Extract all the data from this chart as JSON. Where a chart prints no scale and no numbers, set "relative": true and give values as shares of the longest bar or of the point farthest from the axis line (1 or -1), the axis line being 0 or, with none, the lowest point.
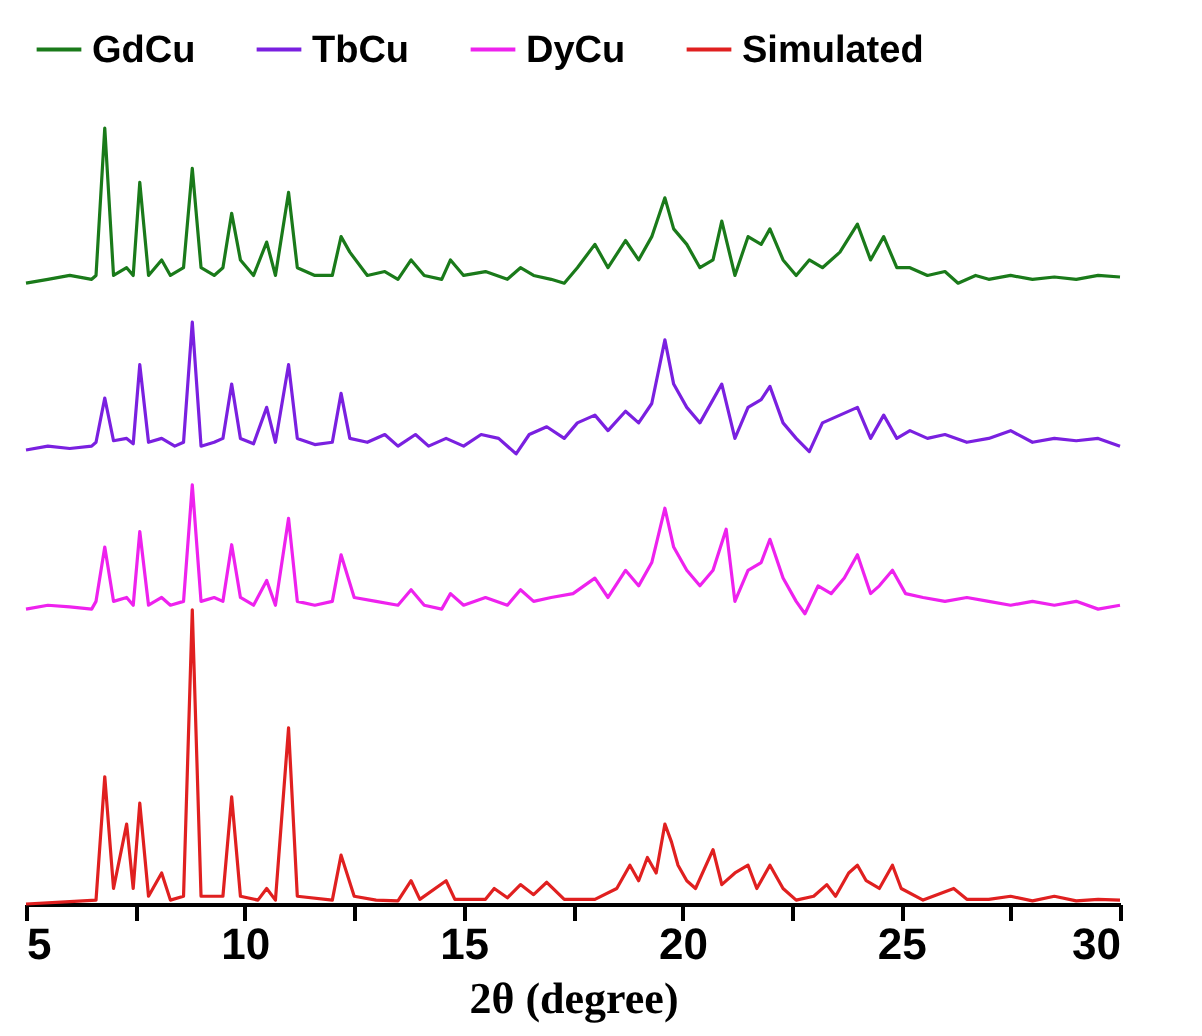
{
  "chart_data": {
    "type": "line",
    "relative": true,
    "xlabel": "2θ (degree)",
    "xlim": [
      5,
      30
    ],
    "xticks": [
      5,
      {
        "value": 7.5,
        "label": null
      },
      10,
      {
        "value": 12.5,
        "label": null
      },
      15,
      {
        "value": 17.5,
        "label": null
      },
      20,
      {
        "value": 22.5,
        "label": null
      },
      25,
      {
        "value": 27.5,
        "label": null
      },
      30
    ],
    "legend": "top",
    "grid": false,
    "marker": "none",
    "line_style": "solid",
    "series": [
      {
        "name": "GdCu",
        "color": "#1a7a1a",
        "x": [
          5,
          5.5,
          6.0,
          6.5,
          6.6,
          6.8,
          7.0,
          7.3,
          7.45,
          7.6,
          7.8,
          8.1,
          8.3,
          8.6,
          8.8,
          9.0,
          9.3,
          9.5,
          9.7,
          9.9,
          10.2,
          10.5,
          10.7,
          11.0,
          11.2,
          11.6,
          12.0,
          12.2,
          12.4,
          12.8,
          13.2,
          13.5,
          13.8,
          14.1,
          14.5,
          14.7,
          15.0,
          15.5,
          16.0,
          16.3,
          16.6,
          17.0,
          17.3,
          17.6,
          18.0,
          18.3,
          18.7,
          19.0,
          19.3,
          19.6,
          19.8,
          20.1,
          20.4,
          20.7,
          20.9,
          21.2,
          21.5,
          21.8,
          22.0,
          22.3,
          22.6,
          22.9,
          23.2,
          23.6,
          24.0,
          24.3,
          24.6,
          24.9,
          25.2,
          25.6,
          26.0,
          26.3,
          26.7,
          27.0,
          27.5,
          28.0,
          28.5,
          29.0,
          29.5,
          30
        ],
        "values": [
          0.8,
          0.805,
          0.81,
          0.805,
          0.81,
          1.0,
          0.81,
          0.82,
          0.81,
          0.93,
          0.81,
          0.83,
          0.81,
          0.82,
          0.948,
          0.82,
          0.81,
          0.82,
          0.89,
          0.83,
          0.81,
          0.853,
          0.81,
          0.917,
          0.82,
          0.81,
          0.81,
          0.86,
          0.84,
          0.81,
          0.815,
          0.805,
          0.83,
          0.81,
          0.805,
          0.83,
          0.81,
          0.815,
          0.805,
          0.82,
          0.81,
          0.805,
          0.8,
          0.82,
          0.85,
          0.82,
          0.855,
          0.83,
          0.86,
          0.91,
          0.87,
          0.85,
          0.82,
          0.83,
          0.88,
          0.81,
          0.86,
          0.85,
          0.87,
          0.83,
          0.81,
          0.83,
          0.82,
          0.84,
          0.876,
          0.83,
          0.86,
          0.82,
          0.82,
          0.81,
          0.815,
          0.8,
          0.81,
          0.805,
          0.81,
          0.805,
          0.808,
          0.805,
          0.81,
          0.808
        ]
      },
      {
        "name": "TbCu",
        "color": "#7a20e0",
        "x": [
          5,
          5.5,
          6.0,
          6.5,
          6.6,
          6.8,
          7.0,
          7.3,
          7.45,
          7.6,
          7.8,
          8.1,
          8.4,
          8.6,
          8.8,
          9.0,
          9.3,
          9.5,
          9.7,
          9.9,
          10.2,
          10.5,
          10.7,
          11.0,
          11.2,
          11.6,
          12.0,
          12.2,
          12.4,
          12.8,
          13.2,
          13.5,
          13.9,
          14.2,
          14.6,
          15.0,
          15.4,
          15.8,
          16.2,
          16.5,
          16.9,
          17.3,
          17.6,
          18.0,
          18.3,
          18.7,
          19.0,
          19.3,
          19.6,
          19.8,
          20.1,
          20.4,
          20.7,
          20.9,
          21.2,
          21.5,
          21.8,
          22.0,
          22.3,
          22.6,
          22.9,
          23.2,
          23.6,
          24.0,
          24.3,
          24.6,
          24.9,
          25.2,
          25.6,
          26.0,
          26.5,
          27.0,
          27.5,
          28.0,
          28.5,
          29.0,
          29.5,
          30
        ],
        "values": [
          0.585,
          0.59,
          0.587,
          0.59,
          0.595,
          0.652,
          0.597,
          0.6,
          0.593,
          0.695,
          0.595,
          0.6,
          0.59,
          0.595,
          0.75,
          0.59,
          0.595,
          0.6,
          0.67,
          0.6,
          0.593,
          0.64,
          0.595,
          0.695,
          0.6,
          0.592,
          0.595,
          0.658,
          0.6,
          0.595,
          0.605,
          0.59,
          0.605,
          0.59,
          0.6,
          0.59,
          0.605,
          0.6,
          0.58,
          0.605,
          0.615,
          0.6,
          0.62,
          0.63,
          0.61,
          0.635,
          0.62,
          0.645,
          0.727,
          0.67,
          0.64,
          0.62,
          0.65,
          0.67,
          0.6,
          0.64,
          0.65,
          0.667,
          0.62,
          0.6,
          0.583,
          0.62,
          0.63,
          0.64,
          0.6,
          0.63,
          0.6,
          0.61,
          0.6,
          0.605,
          0.595,
          0.6,
          0.61,
          0.595,
          0.6,
          0.597,
          0.6,
          0.59
        ]
      },
      {
        "name": "DyCu",
        "color": "#ee22ee",
        "x": [
          5,
          5.5,
          6.0,
          6.5,
          6.6,
          6.8,
          7.0,
          7.3,
          7.45,
          7.6,
          7.8,
          8.1,
          8.3,
          8.6,
          8.8,
          9.0,
          9.3,
          9.5,
          9.7,
          9.9,
          10.2,
          10.5,
          10.7,
          11.0,
          11.2,
          11.6,
          12.0,
          12.2,
          12.5,
          13.0,
          13.5,
          13.8,
          14.1,
          14.5,
          14.7,
          15.0,
          15.5,
          16.0,
          16.3,
          16.6,
          17.0,
          17.5,
          18.0,
          18.3,
          18.7,
          19.0,
          19.3,
          19.6,
          19.8,
          20.1,
          20.4,
          20.7,
          21.0,
          21.2,
          21.5,
          21.8,
          22.0,
          22.3,
          22.6,
          22.8,
          23.1,
          23.4,
          23.7,
          24.0,
          24.3,
          24.5,
          24.8,
          25.1,
          25.5,
          26.0,
          26.5,
          27.0,
          27.5,
          28.0,
          28.5,
          29.0,
          29.5,
          30
        ],
        "values": [
          0.38,
          0.385,
          0.383,
          0.38,
          0.39,
          0.46,
          0.39,
          0.395,
          0.385,
          0.48,
          0.385,
          0.395,
          0.385,
          0.39,
          0.54,
          0.39,
          0.395,
          0.39,
          0.463,
          0.395,
          0.385,
          0.417,
          0.385,
          0.497,
          0.39,
          0.385,
          0.39,
          0.45,
          0.395,
          0.39,
          0.385,
          0.405,
          0.385,
          0.38,
          0.4,
          0.385,
          0.395,
          0.385,
          0.405,
          0.39,
          0.395,
          0.4,
          0.42,
          0.395,
          0.43,
          0.41,
          0.44,
          0.51,
          0.46,
          0.43,
          0.41,
          0.43,
          0.483,
          0.39,
          0.43,
          0.44,
          0.47,
          0.42,
          0.39,
          0.374,
          0.41,
          0.4,
          0.42,
          0.45,
          0.4,
          0.41,
          0.43,
          0.4,
          0.395,
          0.39,
          0.395,
          0.39,
          0.385,
          0.39,
          0.385,
          0.39,
          0.38,
          0.385
        ]
      },
      {
        "name": "Simulated",
        "color": "#e02020",
        "x": [
          5,
          6.0,
          6.6,
          6.8,
          7.0,
          7.3,
          7.45,
          7.6,
          7.8,
          8.1,
          8.3,
          8.6,
          8.8,
          9.0,
          9.5,
          9.7,
          9.9,
          10.3,
          10.5,
          10.7,
          11.0,
          11.2,
          12.0,
          12.2,
          12.5,
          13.0,
          13.5,
          13.8,
          14.0,
          14.6,
          14.8,
          15.5,
          15.7,
          16.0,
          16.3,
          16.6,
          16.9,
          17.3,
          18.0,
          18.5,
          18.8,
          19.0,
          19.2,
          19.4,
          19.6,
          19.75,
          19.9,
          20.1,
          20.3,
          20.7,
          20.9,
          21.2,
          21.5,
          21.7,
          22.0,
          22.3,
          22.6,
          23.0,
          23.3,
          23.5,
          23.8,
          24.0,
          24.2,
          24.5,
          24.8,
          25.0,
          25.5,
          26.2,
          26.5,
          27.0,
          27.5,
          28.0,
          28.5,
          29.0,
          29.5,
          30
        ],
        "values": [
          0.0,
          0.003,
          0.005,
          0.164,
          0.02,
          0.103,
          0.02,
          0.13,
          0.01,
          0.04,
          0.005,
          0.01,
          0.379,
          0.01,
          0.01,
          0.138,
          0.01,
          0.005,
          0.02,
          0.005,
          0.227,
          0.01,
          0.005,
          0.063,
          0.01,
          0.005,
          0.004,
          0.03,
          0.006,
          0.03,
          0.006,
          0.006,
          0.02,
          0.008,
          0.025,
          0.012,
          0.028,
          0.006,
          0.006,
          0.02,
          0.05,
          0.03,
          0.06,
          0.04,
          0.103,
          0.08,
          0.05,
          0.03,
          0.02,
          0.07,
          0.025,
          0.04,
          0.05,
          0.02,
          0.05,
          0.02,
          0.005,
          0.01,
          0.025,
          0.01,
          0.04,
          0.05,
          0.03,
          0.02,
          0.05,
          0.02,
          0.005,
          0.02,
          0.006,
          0.006,
          0.01,
          0.004,
          0.01,
          0.004,
          0.006,
          0.005
        ]
      }
    ]
  }
}
